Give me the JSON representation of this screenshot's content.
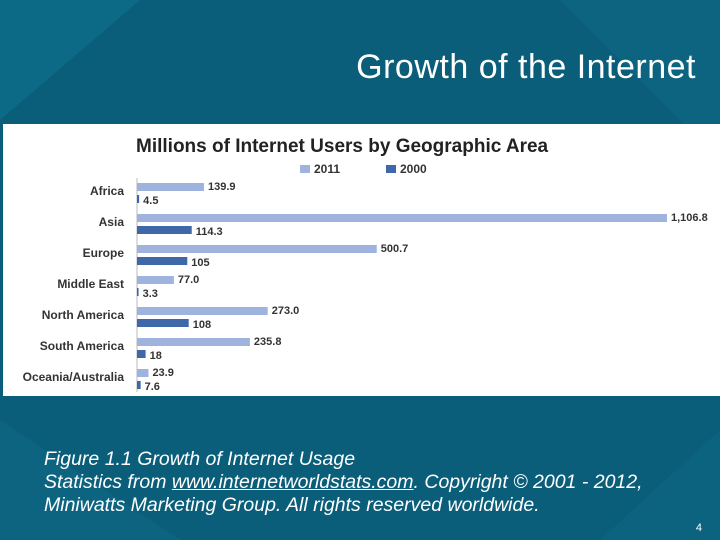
{
  "slide": {
    "title": "Growth of the Internet",
    "caption_line1": "Figure 1.1 Growth of Internet Usage",
    "caption_prefix": "Statistics from ",
    "caption_link": "www.internetworldstats.com",
    "caption_suffix": ". Copyright © 2001 - 2012, Miniwatts Marketing Group. All rights reserved worldwide.",
    "page_number": "4"
  },
  "colors": {
    "background": "#0a5e7a",
    "series_2011": "#9eb3de",
    "series_2000": "#3f68a8"
  },
  "chart_data": {
    "type": "bar",
    "orientation": "horizontal",
    "title": "Millions of Internet Users by Geographic Area",
    "categories": [
      "Africa",
      "Asia",
      "Europe",
      "Middle East",
      "North America",
      "South America",
      "Oceania/Australia"
    ],
    "series": [
      {
        "name": "2011",
        "values": [
          139.9,
          1106.8,
          500.7,
          77.0,
          273.0,
          235.8,
          23.9
        ],
        "labels": [
          "139.9",
          "1,106.8",
          "500.7",
          "77.0",
          "273.0",
          "235.8",
          "23.9"
        ]
      },
      {
        "name": "2000",
        "values": [
          4.5,
          114.3,
          105,
          3.3,
          108,
          18,
          7.6
        ],
        "labels": [
          "4.5",
          "114.3",
          "105",
          "3.3",
          "108",
          "18",
          "7.6"
        ]
      }
    ],
    "legend_position": "top",
    "grid": false
  }
}
